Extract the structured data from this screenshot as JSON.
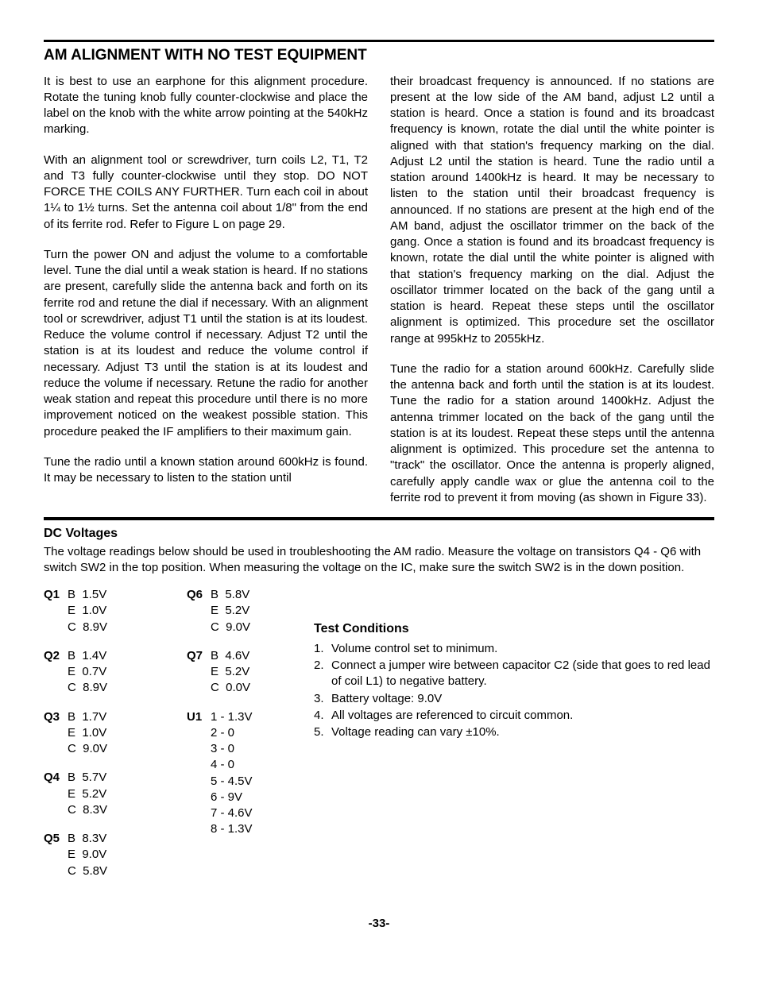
{
  "section_title": "AM ALIGNMENT WITH NO TEST EQUIPMENT",
  "left_paras": [
    "It is best to use an earphone for this alignment procedure. Rotate the tuning knob fully counter-clockwise and place the label on the knob with the white arrow pointing at the 540kHz marking.",
    "With an alignment tool or screwdriver, turn coils L2, T1, T2 and T3 fully counter-clockwise until they stop. DO NOT FORCE THE COILS ANY FURTHER. Turn each coil in about 1¼ to 1½ turns. Set the antenna coil about 1/8\" from the end of its ferrite rod. Refer to Figure L on page 29.",
    "Turn the power ON and adjust the volume to a comfortable level. Tune the dial until a weak station is heard. If no stations are present, carefully slide the antenna back and forth on its ferrite rod and retune the dial if necessary. With an alignment tool or screwdriver, adjust T1 until the station is at its loudest. Reduce the volume control if necessary. Adjust T2 until the station is at its loudest and reduce the volume control if necessary. Adjust T3 until the station is at its loudest and reduce the volume if necessary. Retune the radio for another weak station and repeat this procedure until there is no more improvement noticed on the weakest possible station. This procedure peaked the IF amplifiers to their maximum gain.",
    "Tune the radio until a known station around 600kHz is found. It may be necessary to listen to the station until"
  ],
  "right_paras": [
    "their broadcast frequency is announced. If no stations are present at the low side of the AM band, adjust L2 until a station is heard. Once a station is found and its broadcast frequency is known, rotate the dial until the white pointer is aligned with that station's frequency marking on the dial. Adjust L2 until the station is heard. Tune the radio until a station around 1400kHz is heard. It may be necessary to listen to the station until their broadcast frequency is announced. If no stations are present at the high end of the AM band, adjust the oscillator trimmer on the back of the gang. Once a station is found and its broadcast frequency is known, rotate the dial until the white pointer is aligned with that station's frequency marking on the dial. Adjust the oscillator trimmer located on the back of the gang until a station is heard. Repeat these steps until the oscillator alignment is optimized. This procedure set the oscillator range at 995kHz to 2055kHz.",
    "Tune the radio for a station around 600kHz. Carefully slide the antenna back and forth until the station is at its loudest. Tune the radio for a station around 1400kHz. Adjust the antenna trimmer located on the back of the gang until the station is at its loudest. Repeat these steps until the antenna alignment is optimized. This procedure set the antenna to \"track\" the oscillator. Once the antenna is properly aligned, carefully apply candle wax or glue the antenna coil to the ferrite rod to prevent it from moving (as shown in Figure 33)."
  ],
  "dc_title": "DC Voltages",
  "dc_intro": "The voltage readings below should be used in troubleshooting the AM radio. Measure the voltage on transistors Q4 - Q6 with switch SW2 in the top position. When measuring the voltage on the IC, make sure the switch SW2 is in the down position.",
  "volt_left": [
    {
      "label": "Q1",
      "lines": "B  1.5V\nE  1.0V\nC  8.9V"
    },
    {
      "label": "Q2",
      "lines": "B  1.4V\nE  0.7V\nC  8.9V"
    },
    {
      "label": "Q3",
      "lines": "B  1.7V\nE  1.0V\nC  9.0V"
    },
    {
      "label": "Q4",
      "lines": "B  5.7V\nE  5.2V\nC  8.3V"
    },
    {
      "label": "Q5",
      "lines": "B  8.3V\nE  9.0V\nC  5.8V"
    }
  ],
  "volt_right": [
    {
      "label": "Q6",
      "lines": "B  5.8V\nE  5.2V\nC  9.0V"
    },
    {
      "label": "Q7",
      "lines": "B  4.6V\nE  5.2V\nC  0.0V"
    },
    {
      "label": "U1",
      "lines": "1 - 1.3V\n2 - 0\n3 - 0\n4 - 0\n5 - 4.5V\n6 - 9V\n7 - 4.6V\n8 - 1.3V"
    }
  ],
  "test_title": "Test Conditions",
  "test_items": [
    "Volume control set to minimum.",
    "Connect a jumper wire between capacitor C2 (side that goes to red lead of coil L1) to negative battery.",
    "Battery voltage:  9.0V",
    "All voltages are referenced to circuit common.",
    "Voltage reading can vary ±10%."
  ],
  "page_number": "-33-"
}
